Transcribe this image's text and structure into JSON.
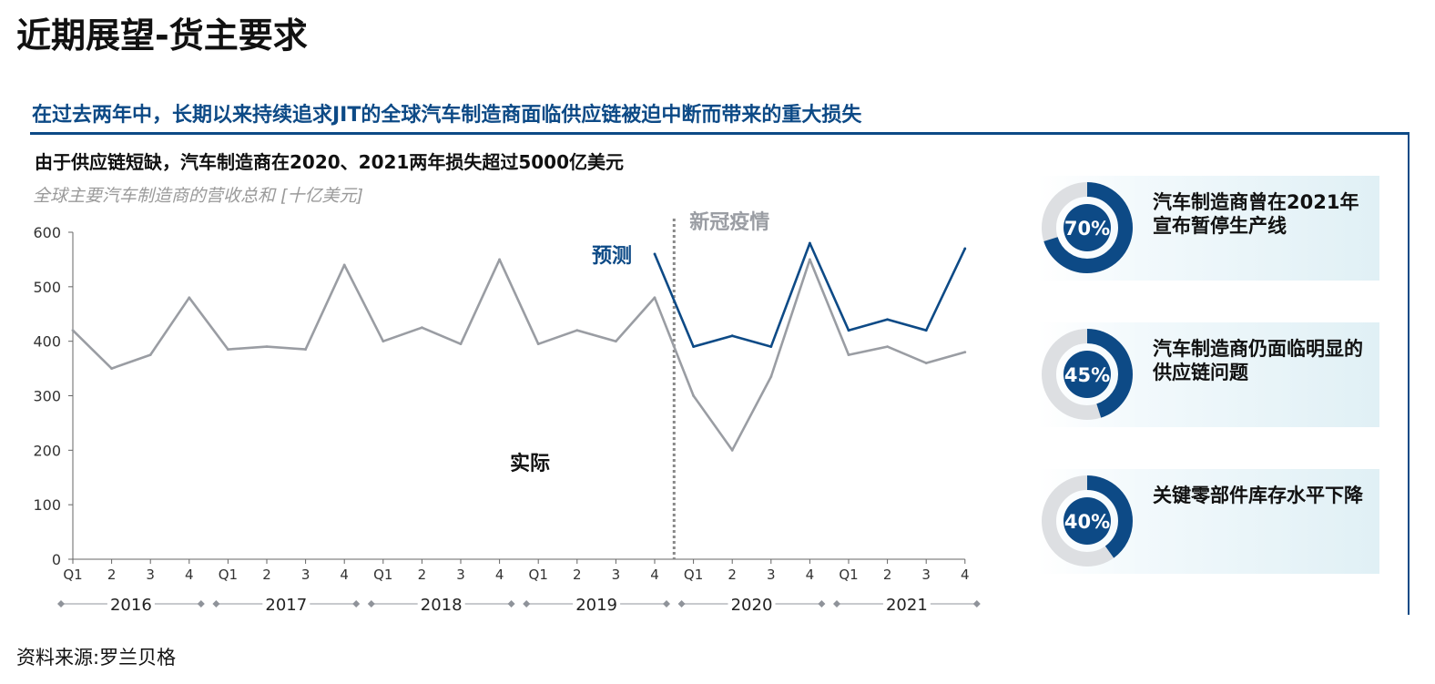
{
  "page": {
    "title": "近期展望-货主要求",
    "section_header": "在过去两年中，长期以来持续追求JIT的全球汽车制造商面临供应链被迫中断而带来的重大损失",
    "chart_heading": "由于供应链短缺，汽车制造商在2020、2021两年损失超过5000亿美元",
    "chart_subtitle": "全球主要汽车制造商的营收总和 [十亿美元]",
    "source": "资料来源:罗兰贝格"
  },
  "chart_data": {
    "type": "line",
    "ylim": [
      0,
      600
    ],
    "yticks": [
      0,
      100,
      200,
      300,
      400,
      500,
      600
    ],
    "x_tick_labels": [
      "Q1",
      "2",
      "3",
      "4",
      "Q1",
      "2",
      "3",
      "4",
      "Q1",
      "2",
      "3",
      "4",
      "Q1",
      "2",
      "3",
      "4",
      "Q1",
      "2",
      "3",
      "4",
      "Q1",
      "2",
      "3",
      "4"
    ],
    "years": [
      "2016",
      "2017",
      "2018",
      "2019",
      "2020",
      "2021"
    ],
    "series": [
      {
        "name": "实际",
        "color": "#9a9da3",
        "start_index": 0,
        "values": [
          420,
          350,
          375,
          480,
          385,
          390,
          385,
          540,
          400,
          425,
          395,
          550,
          395,
          420,
          400,
          480,
          300,
          200,
          335,
          550,
          375,
          390,
          360,
          380
        ]
      },
      {
        "name": "预测",
        "color": "#0d4a86",
        "start_index": 15,
        "values": [
          560,
          390,
          410,
          390,
          580,
          420,
          440,
          420,
          570
        ]
      }
    ],
    "annotations": {
      "covid_label": "新冠疫情",
      "forecast_label": "预测",
      "actual_label": "实际"
    }
  },
  "stats": [
    {
      "percent": 70,
      "label": "70%",
      "text": "汽车制造商曾在2021年宣布暂停生产线"
    },
    {
      "percent": 45,
      "label": "45%",
      "text": "汽车制造商仍面临明显的供应链问题"
    },
    {
      "percent": 40,
      "label": "40%",
      "text": "关键零部件库存水平下降"
    }
  ],
  "colors": {
    "brand": "#0d4a86",
    "actual_line": "#9a9da3",
    "ring_track": "#dddfe2"
  }
}
